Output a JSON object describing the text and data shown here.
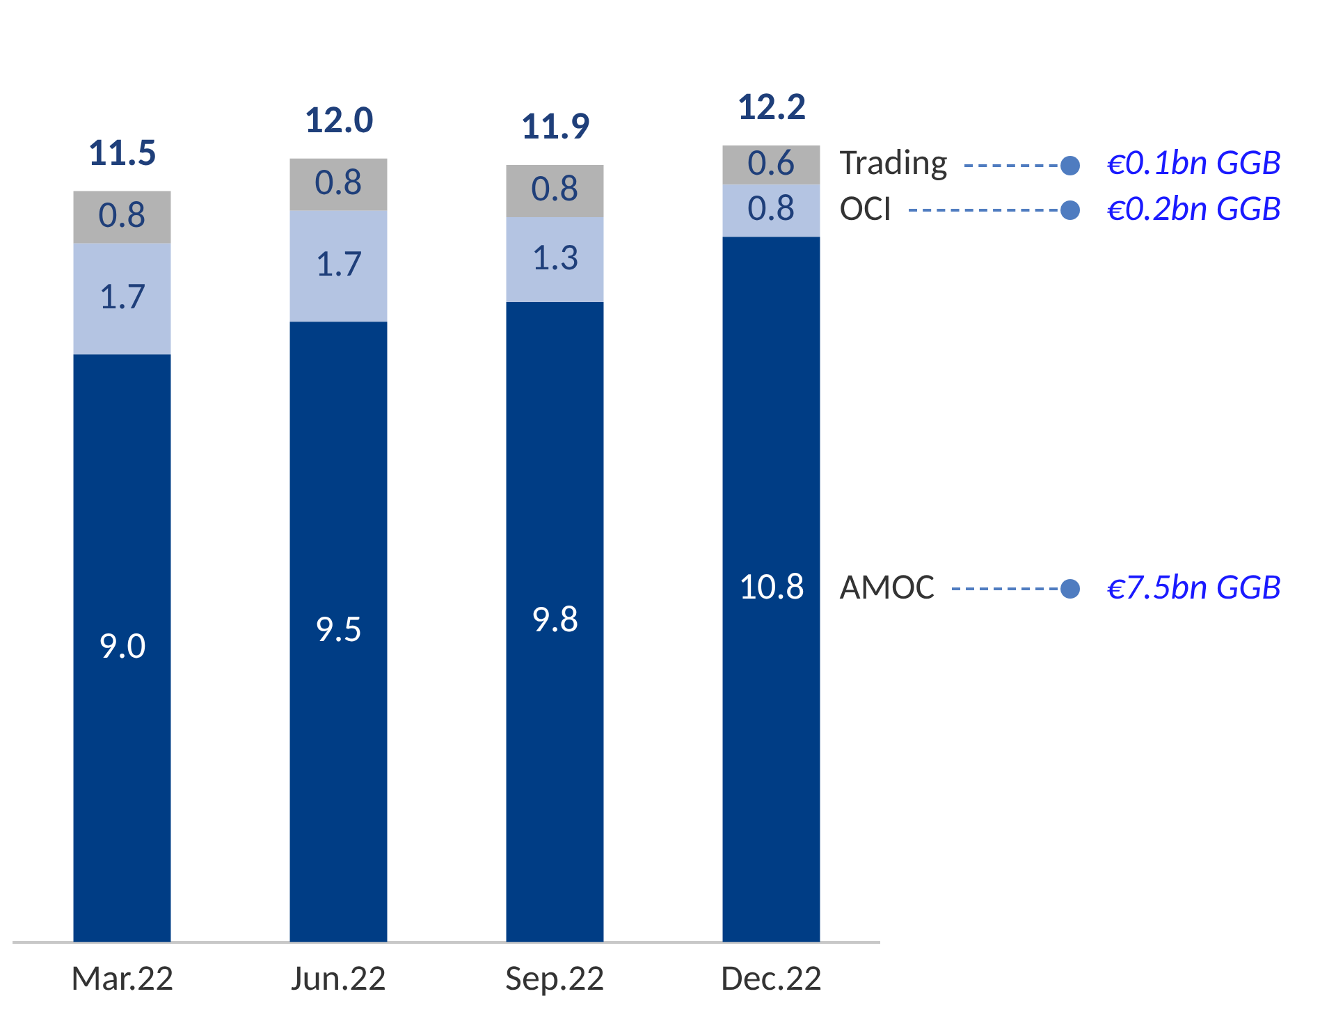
{
  "chart_data": {
    "type": "bar",
    "stacked": true,
    "categories": [
      "Mar.22",
      "Jun.22",
      "Sep.22",
      "Dec.22"
    ],
    "series": [
      {
        "name": "AMOC",
        "color": "#003d85",
        "values": [
          9.0,
          9.5,
          9.8,
          10.8
        ],
        "value_labels": [
          "9.0",
          "9.5",
          "9.8",
          "10.8"
        ]
      },
      {
        "name": "OCI",
        "color": "#b4c4e2",
        "values": [
          1.7,
          1.7,
          1.3,
          0.8
        ],
        "value_labels": [
          "1.7",
          "1.7",
          "1.3",
          "0.8"
        ]
      },
      {
        "name": "Trading",
        "color": "#b3b3b3",
        "values": [
          0.8,
          0.8,
          0.8,
          0.6
        ],
        "value_labels": [
          "0.8",
          "0.8",
          "0.8",
          "0.6"
        ]
      }
    ],
    "totals": [
      "11.5",
      "12.0",
      "11.9",
      "12.2"
    ],
    "annotations": [
      "€7.5bn GGB",
      "€0.2bn GGB",
      "€0.1bn GGB"
    ],
    "tick_labels": "x",
    "legend": false,
    "grid": false
  }
}
